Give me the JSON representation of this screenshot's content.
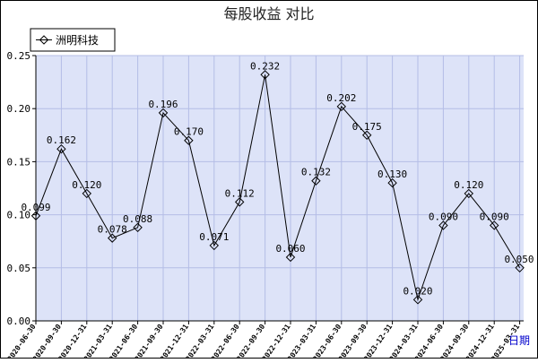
{
  "chart_data": {
    "type": "line",
    "title": "每股收益 对比",
    "xlabel": "日期",
    "ylabel": "",
    "ylim": [
      0,
      0.25
    ],
    "yticks": [
      "0.00",
      "0.05",
      "0.10",
      "0.15",
      "0.20",
      "0.25"
    ],
    "grid": true,
    "legend_position": "top-left",
    "categories": [
      "2020-06-30",
      "2020-09-30",
      "2020-12-31",
      "2021-03-31",
      "2021-06-30",
      "2021-09-30",
      "2021-12-31",
      "2022-03-31",
      "2022-06-30",
      "2022-09-30",
      "2022-12-31",
      "2023-03-31",
      "2023-06-30",
      "2023-09-30",
      "2023-12-31",
      "2024-03-31",
      "2024-06-30",
      "2024-09-30",
      "2024-12-31",
      "2025-03-31"
    ],
    "series": [
      {
        "name": "洲明科技",
        "values": [
          0.099,
          0.162,
          0.12,
          0.078,
          0.088,
          0.196,
          0.17,
          0.071,
          0.112,
          0.232,
          0.06,
          0.132,
          0.202,
          0.175,
          0.13,
          0.02,
          0.09,
          0.12,
          0.09,
          0.05
        ],
        "labels": [
          "0.099",
          "0.162",
          "0.120",
          "0.078",
          "0.088",
          "0.196",
          "0.170",
          "0.071",
          "0.112",
          "0.232",
          "0.060",
          "0.132",
          "0.202",
          "0.175",
          "0.130",
          "0.020",
          "0.090",
          "0.120",
          "0.090",
          "0.050"
        ]
      }
    ],
    "colors": {
      "plot_background": "#dde3f8",
      "grid": "#b4bde6",
      "line": "#000000",
      "page_background": "#ffffff"
    }
  }
}
